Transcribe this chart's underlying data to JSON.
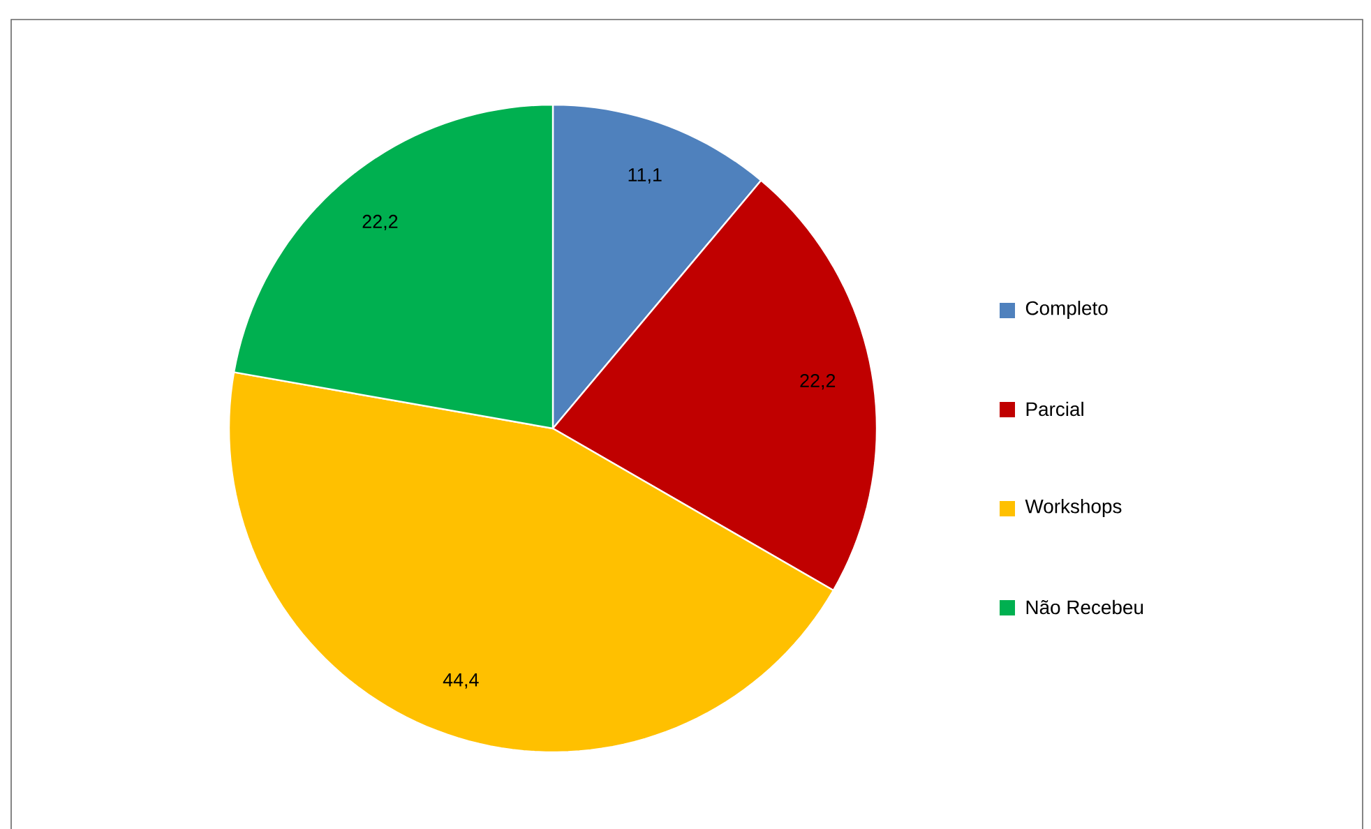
{
  "chart_data": {
    "type": "pie",
    "categories": [
      "Completo",
      "Parcial",
      "Workshops",
      "Não Recebeu"
    ],
    "values": [
      11.1,
      22.2,
      44.4,
      22.2
    ],
    "value_labels": [
      "11,1",
      "22,2",
      "44,4",
      "22,2"
    ],
    "colors": [
      "#4f81bd",
      "#c00000",
      "#ffc000",
      "#00b050"
    ],
    "legend": "right"
  }
}
